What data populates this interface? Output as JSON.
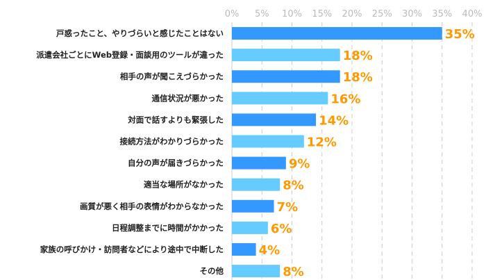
{
  "chart_data": {
    "type": "bar",
    "orientation": "horizontal",
    "categories": [
      "戸惑ったこと、やりづらいと感じたことはない",
      "派遣会社ごとにWeb登録・面談用のツールが違った",
      "相手の声が聞こえづらかった",
      "通信状況が悪かった",
      "対面で話すよりも緊張した",
      "接続方法がわかりづらかった",
      "自分の声が届きづらかった",
      "適当な場所がなかった",
      "画質が悪く相手の表情がわからなかった",
      "日程調整までに時間がかかった",
      "家族の呼びかけ・訪問者などにより途中で中断した",
      "その他"
    ],
    "values": [
      35,
      18,
      18,
      16,
      14,
      12,
      9,
      8,
      7,
      6,
      4,
      8
    ],
    "value_labels": [
      "35%",
      "18%",
      "18%",
      "16%",
      "14%",
      "12%",
      "9%",
      "8%",
      "7%",
      "6%",
      "4%",
      "8%"
    ],
    "xlim": [
      0,
      40
    ],
    "x_ticks": [
      "0%",
      "5%",
      "10%",
      "15%",
      "20%",
      "25%",
      "30%",
      "35%",
      "40%"
    ],
    "x_axis_position": "top",
    "grid": true,
    "colors": {
      "bar_dark": "#3399ff",
      "bar_light": "#66ccff",
      "value_label": "#ff9900"
    }
  }
}
